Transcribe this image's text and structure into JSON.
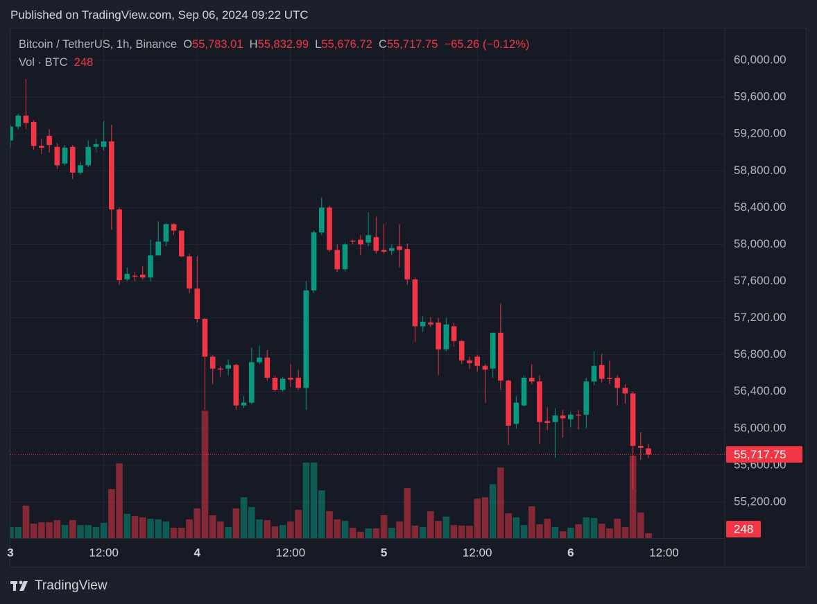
{
  "chart_data": {
    "type": "candlestick",
    "legend": {
      "published": "Published on TradingView.com, Sep 06, 2024 09:22 UTC",
      "symbol": "Bitcoin / TetherUS, 1h, Binance",
      "ohlc": [
        [
          "O",
          "55,783.01"
        ],
        [
          "H",
          "55,832.99"
        ],
        [
          "L",
          "55,676.72"
        ],
        [
          "C",
          "55,717.75"
        ]
      ],
      "change": "−65.26 (−0.12%)",
      "volume_title": "Vol · BTC",
      "brand": "TradingView"
    },
    "x": [
      0,
      1,
      2,
      3,
      4,
      5,
      6,
      7,
      8,
      9,
      10,
      11,
      12,
      13,
      14,
      15,
      16,
      17,
      18,
      19,
      20,
      21,
      22,
      23,
      24,
      25,
      26,
      27,
      28,
      29,
      30,
      31,
      32,
      33,
      34,
      35,
      36,
      37,
      38,
      39,
      40,
      41,
      42,
      43,
      44,
      45,
      46,
      47,
      48,
      49,
      50,
      51,
      52,
      53,
      54,
      55,
      56,
      57,
      58,
      59,
      60,
      61,
      62,
      63,
      64,
      65,
      66,
      67,
      68,
      69,
      70,
      71,
      72,
      73,
      74,
      75,
      76,
      77,
      78,
      79,
      80,
      81,
      82
    ],
    "open": [
      59130,
      59280,
      59400,
      59330,
      59070,
      59180,
      59060,
      58880,
      59060,
      58780,
      58860,
      59060,
      59060,
      59120,
      58380,
      57620,
      57660,
      57670,
      57640,
      57880,
      58030,
      58220,
      58150,
      57870,
      57520,
      57190,
      56780,
      56650,
      56650,
      56690,
      56250,
      56280,
      56720,
      56770,
      56550,
      56420,
      56550,
      56550,
      56440,
      57500,
      58130,
      58400,
      57940,
      57730,
      58040,
      58050,
      58020,
      58080,
      57940,
      57930,
      57980,
      57950,
      57620,
      57110,
      57150,
      57150,
      56860,
      57110,
      56950,
      56740,
      56780,
      56680,
      56650,
      57040,
      56520,
      56050,
      56250,
      56550,
      56510,
      56080,
      56070,
      56140,
      56100,
      56150,
      56150,
      56510,
      56690,
      56550,
      56550,
      56440,
      56380,
      55810,
      55783.01
    ],
    "high": [
      59300,
      59420,
      59800,
      59350,
      59150,
      59250,
      59100,
      59080,
      59080,
      58900,
      59130,
      59150,
      59340,
      59300,
      58400,
      57750,
      57700,
      57760,
      58050,
      58250,
      58230,
      58230,
      58150,
      57900,
      57870,
      57200,
      56800,
      56680,
      56750,
      56700,
      56350,
      56880,
      56900,
      56850,
      56580,
      56560,
      56700,
      56640,
      57600,
      58150,
      58510,
      58420,
      58000,
      58020,
      58050,
      58100,
      58350,
      58300,
      58220,
      58000,
      58220,
      58010,
      57640,
      57220,
      57210,
      57200,
      57200,
      57150,
      56960,
      56780,
      56800,
      56700,
      57040,
      57360,
      56530,
      56350,
      56580,
      56700,
      56580,
      56230,
      56220,
      56200,
      56180,
      56200,
      56550,
      56840,
      56810,
      56740,
      56580,
      56480,
      56400,
      55960,
      55832.99
    ],
    "low": [
      59050,
      59250,
      59250,
      59030,
      58980,
      59000,
      58820,
      58860,
      58710,
      58760,
      58840,
      59000,
      59020,
      58160,
      57560,
      57600,
      57600,
      57620,
      57600,
      57880,
      57980,
      58100,
      57860,
      57470,
      57150,
      56200,
      56480,
      56560,
      56580,
      56200,
      56220,
      56260,
      56700,
      56520,
      56400,
      56400,
      56450,
      56420,
      56200,
      57470,
      58100,
      57920,
      57700,
      57700,
      58000,
      57880,
      57980,
      57900,
      57900,
      57880,
      57750,
      57560,
      56940,
      57050,
      57100,
      56580,
      56840,
      56890,
      56700,
      56650,
      56620,
      56280,
      56550,
      56420,
      55820,
      56000,
      56240,
      56480,
      55830,
      55980,
      55680,
      55900,
      56010,
      55990,
      56000,
      56470,
      56500,
      56480,
      56250,
      56270,
      55340,
      55660,
      55676.72
    ],
    "close": [
      59280,
      59400,
      59320,
      59070,
      59050,
      59080,
      58860,
      59050,
      58780,
      58860,
      59060,
      59090,
      59120,
      58380,
      57610,
      57680,
      57650,
      57640,
      57880,
      58030,
      58220,
      58150,
      57870,
      57520,
      57190,
      56780,
      56650,
      56640,
      56690,
      56250,
      56280,
      56720,
      56770,
      56550,
      56420,
      56540,
      56530,
      56440,
      57500,
      58130,
      58400,
      57940,
      57730,
      58000,
      58030,
      58000,
      58100,
      57930,
      57920,
      57960,
      57940,
      57620,
      57110,
      57160,
      57130,
      56860,
      57130,
      56950,
      56740,
      56710,
      56680,
      56640,
      57040,
      56520,
      56030,
      56280,
      56550,
      56510,
      56070,
      56060,
      56140,
      56110,
      56150,
      56140,
      56510,
      56680,
      56540,
      56540,
      56440,
      56380,
      55810,
      55790,
      55717.75
    ],
    "volume": [
      570,
      570,
      1660,
      740,
      810,
      810,
      920,
      670,
      920,
      670,
      670,
      570,
      780,
      2510,
      3820,
      1240,
      1130,
      1060,
      990,
      960,
      850,
      530,
      530,
      960,
      1520,
      6510,
      1170,
      850,
      570,
      1520,
      2090,
      1590,
      960,
      920,
      600,
      670,
      850,
      1450,
      3860,
      3860,
      2440,
      1380,
      960,
      880,
      530,
      320,
      500,
      500,
      1170,
      530,
      850,
      2550,
      640,
      570,
      1380,
      880,
      1100,
      670,
      640,
      640,
      2020,
      2090,
      2760,
      3610,
      1270,
      1060,
      670,
      1630,
      710,
      990,
      570,
      350,
      530,
      710,
      1060,
      1030,
      740,
      500,
      990,
      570,
      4210,
      1310,
      248
    ],
    "up_color": "#089981",
    "down_color": "#f23645",
    "xlim": [
      0,
      91.8
    ],
    "xticks": [
      {
        "value": 0,
        "label": "3"
      },
      {
        "value": 12,
        "label": "12:00"
      },
      {
        "value": 24,
        "label": "4"
      },
      {
        "value": 36,
        "label": "12:00"
      },
      {
        "value": 48,
        "label": "5"
      },
      {
        "value": 60,
        "label": "12:00"
      },
      {
        "value": 72,
        "label": "6"
      },
      {
        "value": 84,
        "label": "12:00"
      }
    ],
    "ylim": [
      54808,
      60347
    ],
    "yticks": [
      {
        "value": 55200,
        "label": "55,200.00"
      },
      {
        "value": 55600,
        "label": "55,600.00"
      },
      {
        "value": 56000,
        "label": "56,000.00"
      },
      {
        "value": 56400,
        "label": "56,400.00"
      },
      {
        "value": 56800,
        "label": "56,800.00"
      },
      {
        "value": 57200,
        "label": "57,200.00"
      },
      {
        "value": 57600,
        "label": "57,600.00"
      },
      {
        "value": 58000,
        "label": "58,000.00"
      },
      {
        "value": 58400,
        "label": "58,400.00"
      },
      {
        "value": 58800,
        "label": "58,800.00"
      },
      {
        "value": 59200,
        "label": "59,200.00"
      },
      {
        "value": 59600,
        "label": "59,600.00"
      },
      {
        "value": 60000,
        "label": "60,000.00"
      }
    ],
    "volume_ylim": [
      0,
      10000
    ],
    "last_price": {
      "value": 55717.75,
      "label": "55,717.75"
    },
    "grid": true
  }
}
